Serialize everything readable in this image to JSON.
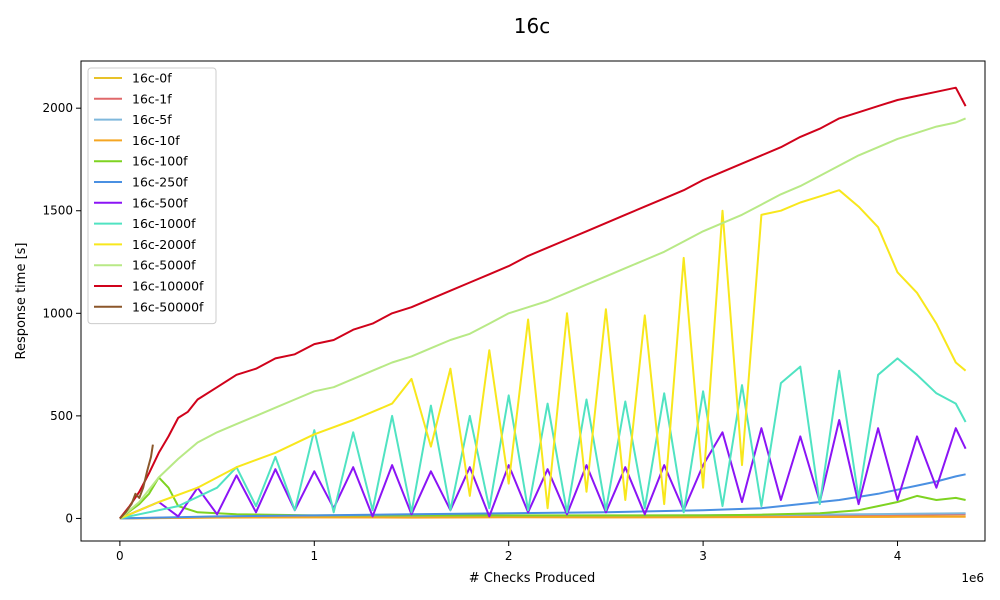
{
  "chart_data": {
    "type": "line",
    "title": "16c",
    "xlabel": "# Checks Produced",
    "ylabel": "Response time [s]",
    "x_multiplier_label": "1e6",
    "xlim": [
      -0.2,
      4.45
    ],
    "ylim": [
      -110,
      2230
    ],
    "xticks": [
      0,
      1,
      2,
      3,
      4
    ],
    "yticks": [
      0,
      500,
      1000,
      1500,
      2000
    ],
    "grid": false,
    "legend_position": "upper-left",
    "series": [
      {
        "name": "16c-0f",
        "color": "#e8c229",
        "points": [
          [
            0,
            0
          ],
          [
            0.5,
            5
          ],
          [
            1.0,
            6
          ],
          [
            1.5,
            5
          ],
          [
            2.0,
            7
          ],
          [
            2.5,
            6
          ],
          [
            3.0,
            7
          ],
          [
            3.5,
            8
          ],
          [
            4.0,
            9
          ],
          [
            4.35,
            10
          ]
        ]
      },
      {
        "name": "16c-1f",
        "color": "#e0686a",
        "points": [
          [
            0,
            0
          ],
          [
            0.5,
            6
          ],
          [
            1.0,
            8
          ],
          [
            1.5,
            9
          ],
          [
            2.0,
            10
          ],
          [
            2.5,
            12
          ],
          [
            3.0,
            13
          ],
          [
            3.5,
            15
          ],
          [
            4.0,
            18
          ],
          [
            4.35,
            20
          ]
        ]
      },
      {
        "name": "16c-5f",
        "color": "#7fb8dc",
        "points": [
          [
            0,
            0
          ],
          [
            0.5,
            7
          ],
          [
            1.0,
            9
          ],
          [
            1.5,
            10
          ],
          [
            2.0,
            12
          ],
          [
            2.5,
            14
          ],
          [
            3.0,
            16
          ],
          [
            3.5,
            18
          ],
          [
            4.0,
            22
          ],
          [
            4.35,
            25
          ]
        ]
      },
      {
        "name": "16c-10f",
        "color": "#f5a623",
        "points": [
          [
            0,
            0
          ],
          [
            0.5,
            4
          ],
          [
            1.0,
            5
          ],
          [
            1.5,
            4
          ],
          [
            2.0,
            6
          ],
          [
            2.5,
            5
          ],
          [
            3.0,
            6
          ],
          [
            3.5,
            7
          ],
          [
            4.0,
            8
          ],
          [
            4.35,
            8
          ]
        ]
      },
      {
        "name": "16c-100f",
        "color": "#7ed321",
        "points": [
          [
            0,
            0
          ],
          [
            0.1,
            70
          ],
          [
            0.15,
            120
          ],
          [
            0.2,
            200
          ],
          [
            0.25,
            150
          ],
          [
            0.3,
            60
          ],
          [
            0.4,
            30
          ],
          [
            0.6,
            20
          ],
          [
            1.0,
            15
          ],
          [
            1.5,
            15
          ],
          [
            2.0,
            15
          ],
          [
            2.5,
            15
          ],
          [
            3.0,
            15
          ],
          [
            3.3,
            18
          ],
          [
            3.6,
            25
          ],
          [
            3.8,
            40
          ],
          [
            3.9,
            60
          ],
          [
            4.0,
            80
          ],
          [
            4.1,
            110
          ],
          [
            4.2,
            90
          ],
          [
            4.3,
            100
          ],
          [
            4.35,
            90
          ]
        ]
      },
      {
        "name": "16c-250f",
        "color": "#4a90e2",
        "points": [
          [
            0,
            0
          ],
          [
            0.5,
            10
          ],
          [
            1.0,
            15
          ],
          [
            1.5,
            20
          ],
          [
            2.0,
            25
          ],
          [
            2.5,
            30
          ],
          [
            3.0,
            40
          ],
          [
            3.3,
            50
          ],
          [
            3.5,
            70
          ],
          [
            3.7,
            90
          ],
          [
            3.9,
            120
          ],
          [
            4.0,
            140
          ],
          [
            4.1,
            160
          ],
          [
            4.2,
            180
          ],
          [
            4.3,
            205
          ],
          [
            4.35,
            215
          ]
        ]
      },
      {
        "name": "16c-500f",
        "color": "#8b14f5",
        "points": [
          [
            0,
            0
          ],
          [
            0.2,
            80
          ],
          [
            0.3,
            10
          ],
          [
            0.4,
            150
          ],
          [
            0.5,
            20
          ],
          [
            0.6,
            210
          ],
          [
            0.7,
            30
          ],
          [
            0.8,
            240
          ],
          [
            0.9,
            40
          ],
          [
            1.0,
            230
          ],
          [
            1.1,
            50
          ],
          [
            1.2,
            250
          ],
          [
            1.3,
            10
          ],
          [
            1.4,
            260
          ],
          [
            1.5,
            20
          ],
          [
            1.6,
            230
          ],
          [
            1.7,
            40
          ],
          [
            1.8,
            250
          ],
          [
            1.9,
            10
          ],
          [
            2.0,
            260
          ],
          [
            2.1,
            30
          ],
          [
            2.2,
            240
          ],
          [
            2.3,
            20
          ],
          [
            2.4,
            260
          ],
          [
            2.5,
            30
          ],
          [
            2.6,
            250
          ],
          [
            2.7,
            20
          ],
          [
            2.8,
            260
          ],
          [
            2.9,
            40
          ],
          [
            3.0,
            260
          ],
          [
            3.1,
            420
          ],
          [
            3.2,
            80
          ],
          [
            3.3,
            440
          ],
          [
            3.4,
            90
          ],
          [
            3.5,
            400
          ],
          [
            3.6,
            80
          ],
          [
            3.7,
            480
          ],
          [
            3.8,
            70
          ],
          [
            3.9,
            440
          ],
          [
            4.0,
            90
          ],
          [
            4.1,
            400
          ],
          [
            4.2,
            150
          ],
          [
            4.3,
            440
          ],
          [
            4.35,
            340
          ]
        ]
      },
      {
        "name": "16c-1000f",
        "color": "#50e3c2",
        "points": [
          [
            0,
            0
          ],
          [
            0.3,
            60
          ],
          [
            0.5,
            150
          ],
          [
            0.6,
            250
          ],
          [
            0.7,
            60
          ],
          [
            0.8,
            300
          ],
          [
            0.9,
            40
          ],
          [
            1.0,
            430
          ],
          [
            1.1,
            30
          ],
          [
            1.2,
            420
          ],
          [
            1.3,
            40
          ],
          [
            1.4,
            500
          ],
          [
            1.5,
            30
          ],
          [
            1.6,
            550
          ],
          [
            1.7,
            40
          ],
          [
            1.8,
            500
          ],
          [
            1.9,
            50
          ],
          [
            2.0,
            600
          ],
          [
            2.1,
            40
          ],
          [
            2.2,
            560
          ],
          [
            2.3,
            30
          ],
          [
            2.4,
            580
          ],
          [
            2.5,
            40
          ],
          [
            2.6,
            570
          ],
          [
            2.7,
            50
          ],
          [
            2.8,
            610
          ],
          [
            2.9,
            30
          ],
          [
            3.0,
            620
          ],
          [
            3.1,
            60
          ],
          [
            3.2,
            650
          ],
          [
            3.3,
            60
          ],
          [
            3.4,
            660
          ],
          [
            3.5,
            740
          ],
          [
            3.6,
            70
          ],
          [
            3.7,
            720
          ],
          [
            3.8,
            100
          ],
          [
            3.9,
            700
          ],
          [
            4.0,
            780
          ],
          [
            4.1,
            700
          ],
          [
            4.2,
            610
          ],
          [
            4.3,
            560
          ],
          [
            4.35,
            470
          ]
        ]
      },
      {
        "name": "16c-2000f",
        "color": "#f8e71c",
        "points": [
          [
            0,
            0
          ],
          [
            0.2,
            80
          ],
          [
            0.4,
            150
          ],
          [
            0.6,
            250
          ],
          [
            0.8,
            320
          ],
          [
            1.0,
            410
          ],
          [
            1.2,
            480
          ],
          [
            1.4,
            560
          ],
          [
            1.5,
            680
          ],
          [
            1.6,
            350
          ],
          [
            1.7,
            730
          ],
          [
            1.8,
            110
          ],
          [
            1.9,
            820
          ],
          [
            2.0,
            170
          ],
          [
            2.1,
            970
          ],
          [
            2.2,
            50
          ],
          [
            2.3,
            1000
          ],
          [
            2.4,
            130
          ],
          [
            2.5,
            1020
          ],
          [
            2.6,
            90
          ],
          [
            2.7,
            990
          ],
          [
            2.8,
            70
          ],
          [
            2.9,
            1270
          ],
          [
            3.0,
            150
          ],
          [
            3.1,
            1500
          ],
          [
            3.2,
            260
          ],
          [
            3.3,
            1480
          ],
          [
            3.4,
            1500
          ],
          [
            3.5,
            1540
          ],
          [
            3.6,
            1570
          ],
          [
            3.7,
            1600
          ],
          [
            3.8,
            1520
          ],
          [
            3.9,
            1420
          ],
          [
            4.0,
            1200
          ],
          [
            4.1,
            1100
          ],
          [
            4.2,
            950
          ],
          [
            4.3,
            760
          ],
          [
            4.35,
            720
          ]
        ]
      },
      {
        "name": "16c-5000f",
        "color": "#b8e986",
        "points": [
          [
            0,
            0
          ],
          [
            0.1,
            80
          ],
          [
            0.2,
            200
          ],
          [
            0.3,
            290
          ],
          [
            0.4,
            370
          ],
          [
            0.5,
            420
          ],
          [
            0.6,
            460
          ],
          [
            0.7,
            500
          ],
          [
            0.8,
            540
          ],
          [
            0.9,
            580
          ],
          [
            1.0,
            620
          ],
          [
            1.1,
            640
          ],
          [
            1.2,
            680
          ],
          [
            1.3,
            720
          ],
          [
            1.4,
            760
          ],
          [
            1.5,
            790
          ],
          [
            1.6,
            830
          ],
          [
            1.7,
            870
          ],
          [
            1.8,
            900
          ],
          [
            1.9,
            950
          ],
          [
            2.0,
            1000
          ],
          [
            2.1,
            1030
          ],
          [
            2.2,
            1060
          ],
          [
            2.3,
            1100
          ],
          [
            2.4,
            1140
          ],
          [
            2.5,
            1180
          ],
          [
            2.6,
            1220
          ],
          [
            2.7,
            1260
          ],
          [
            2.8,
            1300
          ],
          [
            2.9,
            1350
          ],
          [
            3.0,
            1400
          ],
          [
            3.1,
            1440
          ],
          [
            3.2,
            1480
          ],
          [
            3.3,
            1530
          ],
          [
            3.4,
            1580
          ],
          [
            3.5,
            1620
          ],
          [
            3.6,
            1670
          ],
          [
            3.7,
            1720
          ],
          [
            3.8,
            1770
          ],
          [
            3.9,
            1810
          ],
          [
            4.0,
            1850
          ],
          [
            4.1,
            1880
          ],
          [
            4.2,
            1910
          ],
          [
            4.3,
            1930
          ],
          [
            4.35,
            1950
          ]
        ]
      },
      {
        "name": "16c-10000f",
        "color": "#d0021b",
        "points": [
          [
            0,
            0
          ],
          [
            0.05,
            60
          ],
          [
            0.1,
            130
          ],
          [
            0.15,
            220
          ],
          [
            0.2,
            320
          ],
          [
            0.25,
            400
          ],
          [
            0.3,
            490
          ],
          [
            0.35,
            520
          ],
          [
            0.4,
            580
          ],
          [
            0.5,
            640
          ],
          [
            0.6,
            700
          ],
          [
            0.7,
            730
          ],
          [
            0.8,
            780
          ],
          [
            0.9,
            800
          ],
          [
            1.0,
            850
          ],
          [
            1.1,
            870
          ],
          [
            1.2,
            920
          ],
          [
            1.3,
            950
          ],
          [
            1.4,
            1000
          ],
          [
            1.5,
            1030
          ],
          [
            1.6,
            1070
          ],
          [
            1.7,
            1110
          ],
          [
            1.8,
            1150
          ],
          [
            1.9,
            1190
          ],
          [
            2.0,
            1230
          ],
          [
            2.1,
            1280
          ],
          [
            2.2,
            1320
          ],
          [
            2.3,
            1360
          ],
          [
            2.4,
            1400
          ],
          [
            2.5,
            1440
          ],
          [
            2.6,
            1480
          ],
          [
            2.7,
            1520
          ],
          [
            2.8,
            1560
          ],
          [
            2.9,
            1600
          ],
          [
            3.0,
            1650
          ],
          [
            3.1,
            1690
          ],
          [
            3.2,
            1730
          ],
          [
            3.3,
            1770
          ],
          [
            3.4,
            1810
          ],
          [
            3.5,
            1860
          ],
          [
            3.6,
            1900
          ],
          [
            3.7,
            1950
          ],
          [
            3.8,
            1980
          ],
          [
            3.9,
            2010
          ],
          [
            4.0,
            2040
          ],
          [
            4.1,
            2060
          ],
          [
            4.2,
            2080
          ],
          [
            4.3,
            2100
          ],
          [
            4.35,
            2010
          ]
        ]
      },
      {
        "name": "16c-50000f",
        "color": "#8b572a",
        "points": [
          [
            0,
            0
          ],
          [
            0.03,
            30
          ],
          [
            0.06,
            70
          ],
          [
            0.08,
            120
          ],
          [
            0.1,
            100
          ],
          [
            0.12,
            150
          ],
          [
            0.14,
            230
          ],
          [
            0.16,
            300
          ],
          [
            0.17,
            360
          ]
        ]
      }
    ]
  }
}
